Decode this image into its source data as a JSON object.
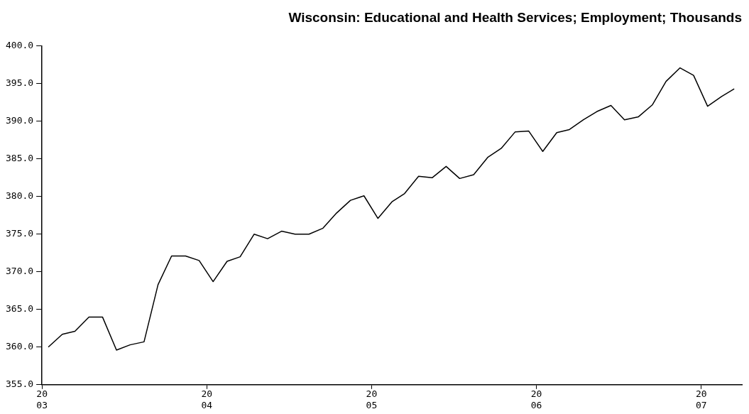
{
  "chart_data": {
    "type": "line",
    "title": "Wisconsin: Educational and Health Services; Employment; Thousands",
    "x": [
      "2003-01-15",
      "2003-02-15",
      "2003-03-15",
      "2003-04-15",
      "2003-05-15",
      "2003-06-15",
      "2003-07-15",
      "2003-08-15",
      "2003-09-15",
      "2003-10-15",
      "2003-11-15",
      "2003-12-15",
      "2004-01-15",
      "2004-02-15",
      "2004-03-15",
      "2004-04-15",
      "2004-05-15",
      "2004-06-15",
      "2004-07-15",
      "2004-08-15",
      "2004-09-15",
      "2004-10-15",
      "2004-11-15",
      "2004-12-15",
      "2005-01-15",
      "2005-02-15",
      "2005-03-15",
      "2005-04-15",
      "2005-05-15",
      "2005-06-15",
      "2005-07-15",
      "2005-08-15",
      "2005-09-15",
      "2005-10-15",
      "2005-11-15",
      "2005-12-15",
      "2006-01-15",
      "2006-02-15",
      "2006-03-15",
      "2006-04-15",
      "2006-05-15",
      "2006-06-15",
      "2006-07-15",
      "2006-08-15",
      "2006-09-15",
      "2006-10-15",
      "2006-11-15",
      "2006-12-15",
      "2007-01-15",
      "2007-02-15",
      "2007-03-15"
    ],
    "series": [
      {
        "color": "#000000",
        "values": [
          360.0,
          361.7,
          362.1,
          364.0,
          364.0,
          359.6,
          360.3,
          360.7,
          368.3,
          372.1,
          372.1,
          371.5,
          368.7,
          371.4,
          372.0,
          375.0,
          374.4,
          375.4,
          375.0,
          375.0,
          375.8,
          377.8,
          379.5,
          380.1,
          377.1,
          379.3,
          380.4,
          382.7,
          382.5,
          384.0,
          382.4,
          382.9,
          385.2,
          386.4,
          388.6,
          388.7,
          386.0,
          388.5,
          388.9,
          390.2,
          391.3,
          392.1,
          390.2,
          390.6,
          392.2,
          395.3,
          397.1,
          396.1,
          392.0,
          393.3,
          394.3
        ]
      }
    ],
    "xlim": [
      "2003",
      "2007-04"
    ],
    "xticks": [
      {
        "value": "2003",
        "label": "20\n03"
      },
      {
        "value": "2004",
        "label": "20\n04"
      },
      {
        "value": "2005",
        "label": "20\n05"
      },
      {
        "value": "2006",
        "label": "20\n06"
      },
      {
        "value": "2007",
        "label": "20\n07"
      }
    ],
    "ylim": [
      355,
      400
    ],
    "yticks": [
      {
        "value": 355,
        "label": "355.0"
      },
      {
        "value": 360,
        "label": "360.0"
      },
      {
        "value": 365,
        "label": "365.0"
      },
      {
        "value": 370,
        "label": "370.0"
      },
      {
        "value": 375,
        "label": "375.0"
      },
      {
        "value": 380,
        "label": "380.0"
      },
      {
        "value": 385,
        "label": "385.0"
      },
      {
        "value": 390,
        "label": "390.0"
      },
      {
        "value": 395,
        "label": "395.0"
      },
      {
        "value": 400,
        "label": "400.0"
      }
    ],
    "marker": "none",
    "line_style": "solid"
  }
}
